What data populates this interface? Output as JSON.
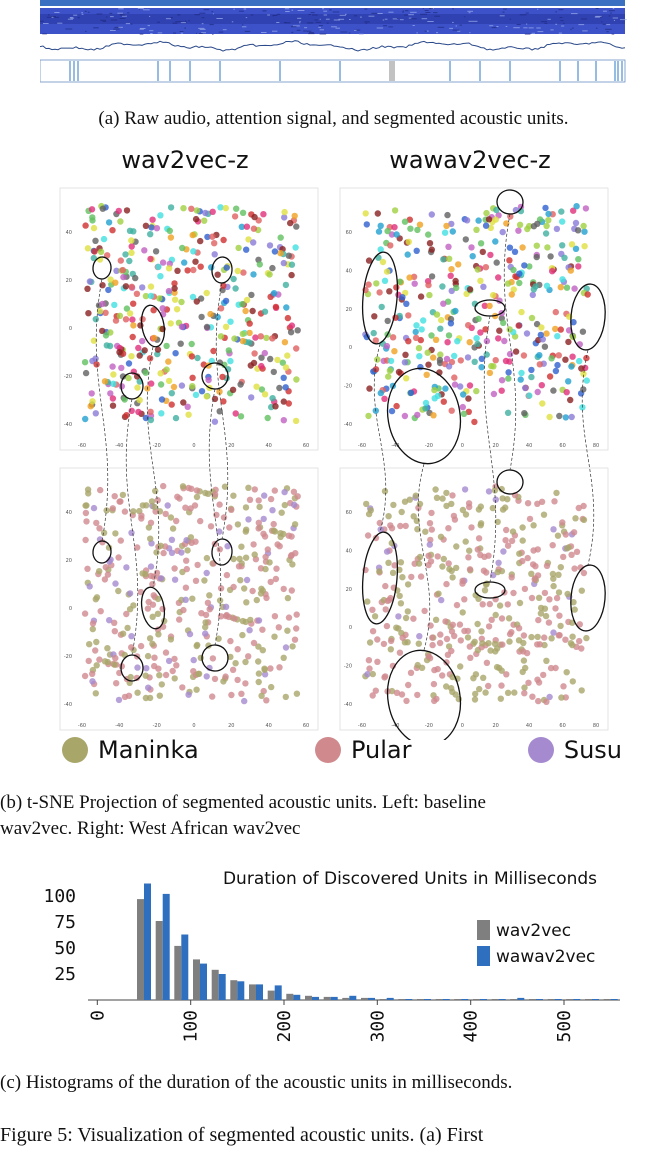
{
  "figure": {
    "caption_a": "(a) Raw audio, attention signal, and segmented acoustic units.",
    "caption_b_line1": "(b) t-SNE Projection of segmented acoustic units. Left: baseline",
    "caption_b_line2": "wav2vec. Right: West African wav2vec",
    "caption_c": "(c) Histograms of the duration of the acoustic units in milliseconds.",
    "main_caption": "Figure 5: Visualization of segmented acoustic units. (a) First"
  },
  "tsne": {
    "left_title": "wav2vec-z",
    "right_title": "wawav2vec-z",
    "left_x_ticks": [
      "-60",
      "-40",
      "-20",
      "0",
      "20",
      "40",
      "60"
    ],
    "left_y_ticks": [
      "40",
      "20",
      "0",
      "-20",
      "-40"
    ],
    "right_x_ticks": [
      "-60",
      "-40",
      "-20",
      "0",
      "20",
      "40",
      "60",
      "80"
    ],
    "right_y_ticks": [
      "60",
      "40",
      "20",
      "0",
      "-20",
      "-40"
    ],
    "legend": [
      {
        "name": "Maninka",
        "color": "#a9a66a"
      },
      {
        "name": "Pular",
        "color": "#d08a8e"
      },
      {
        "name": "Susu",
        "color": "#a58ad0"
      }
    ]
  },
  "chart_data": {
    "type": "bar",
    "title": "Duration of Discovered Units in Milliseconds",
    "xlabel": "",
    "ylabel": "",
    "x": [
      50,
      70,
      90,
      110,
      130,
      150,
      170,
      190,
      210,
      230,
      250,
      270,
      290,
      310,
      330,
      350,
      370,
      390,
      410,
      430,
      450,
      470,
      490,
      510,
      530,
      550
    ],
    "x_ticks": [
      "0",
      "100",
      "200",
      "300",
      "400",
      "500"
    ],
    "y_ticks": [
      "25",
      "50",
      "75",
      "100"
    ],
    "xlim": [
      -10,
      560
    ],
    "ylim": [
      0,
      125
    ],
    "series": [
      {
        "name": "wav2vec",
        "color": "#7f7f7f",
        "values": [
          97,
          76,
          52,
          39,
          29,
          19,
          15,
          9,
          6,
          4,
          3,
          2,
          2,
          1,
          1,
          1,
          1,
          1,
          1,
          1,
          1,
          1,
          1,
          1,
          1,
          1
        ]
      },
      {
        "name": "wawav2vec",
        "color": "#2f6fbf",
        "values": [
          112,
          102,
          63,
          35,
          25,
          18,
          15,
          14,
          5,
          3,
          3,
          4,
          2,
          2,
          1,
          1,
          1,
          1,
          1,
          1,
          2,
          1,
          1,
          1,
          1,
          1
        ]
      }
    ]
  }
}
